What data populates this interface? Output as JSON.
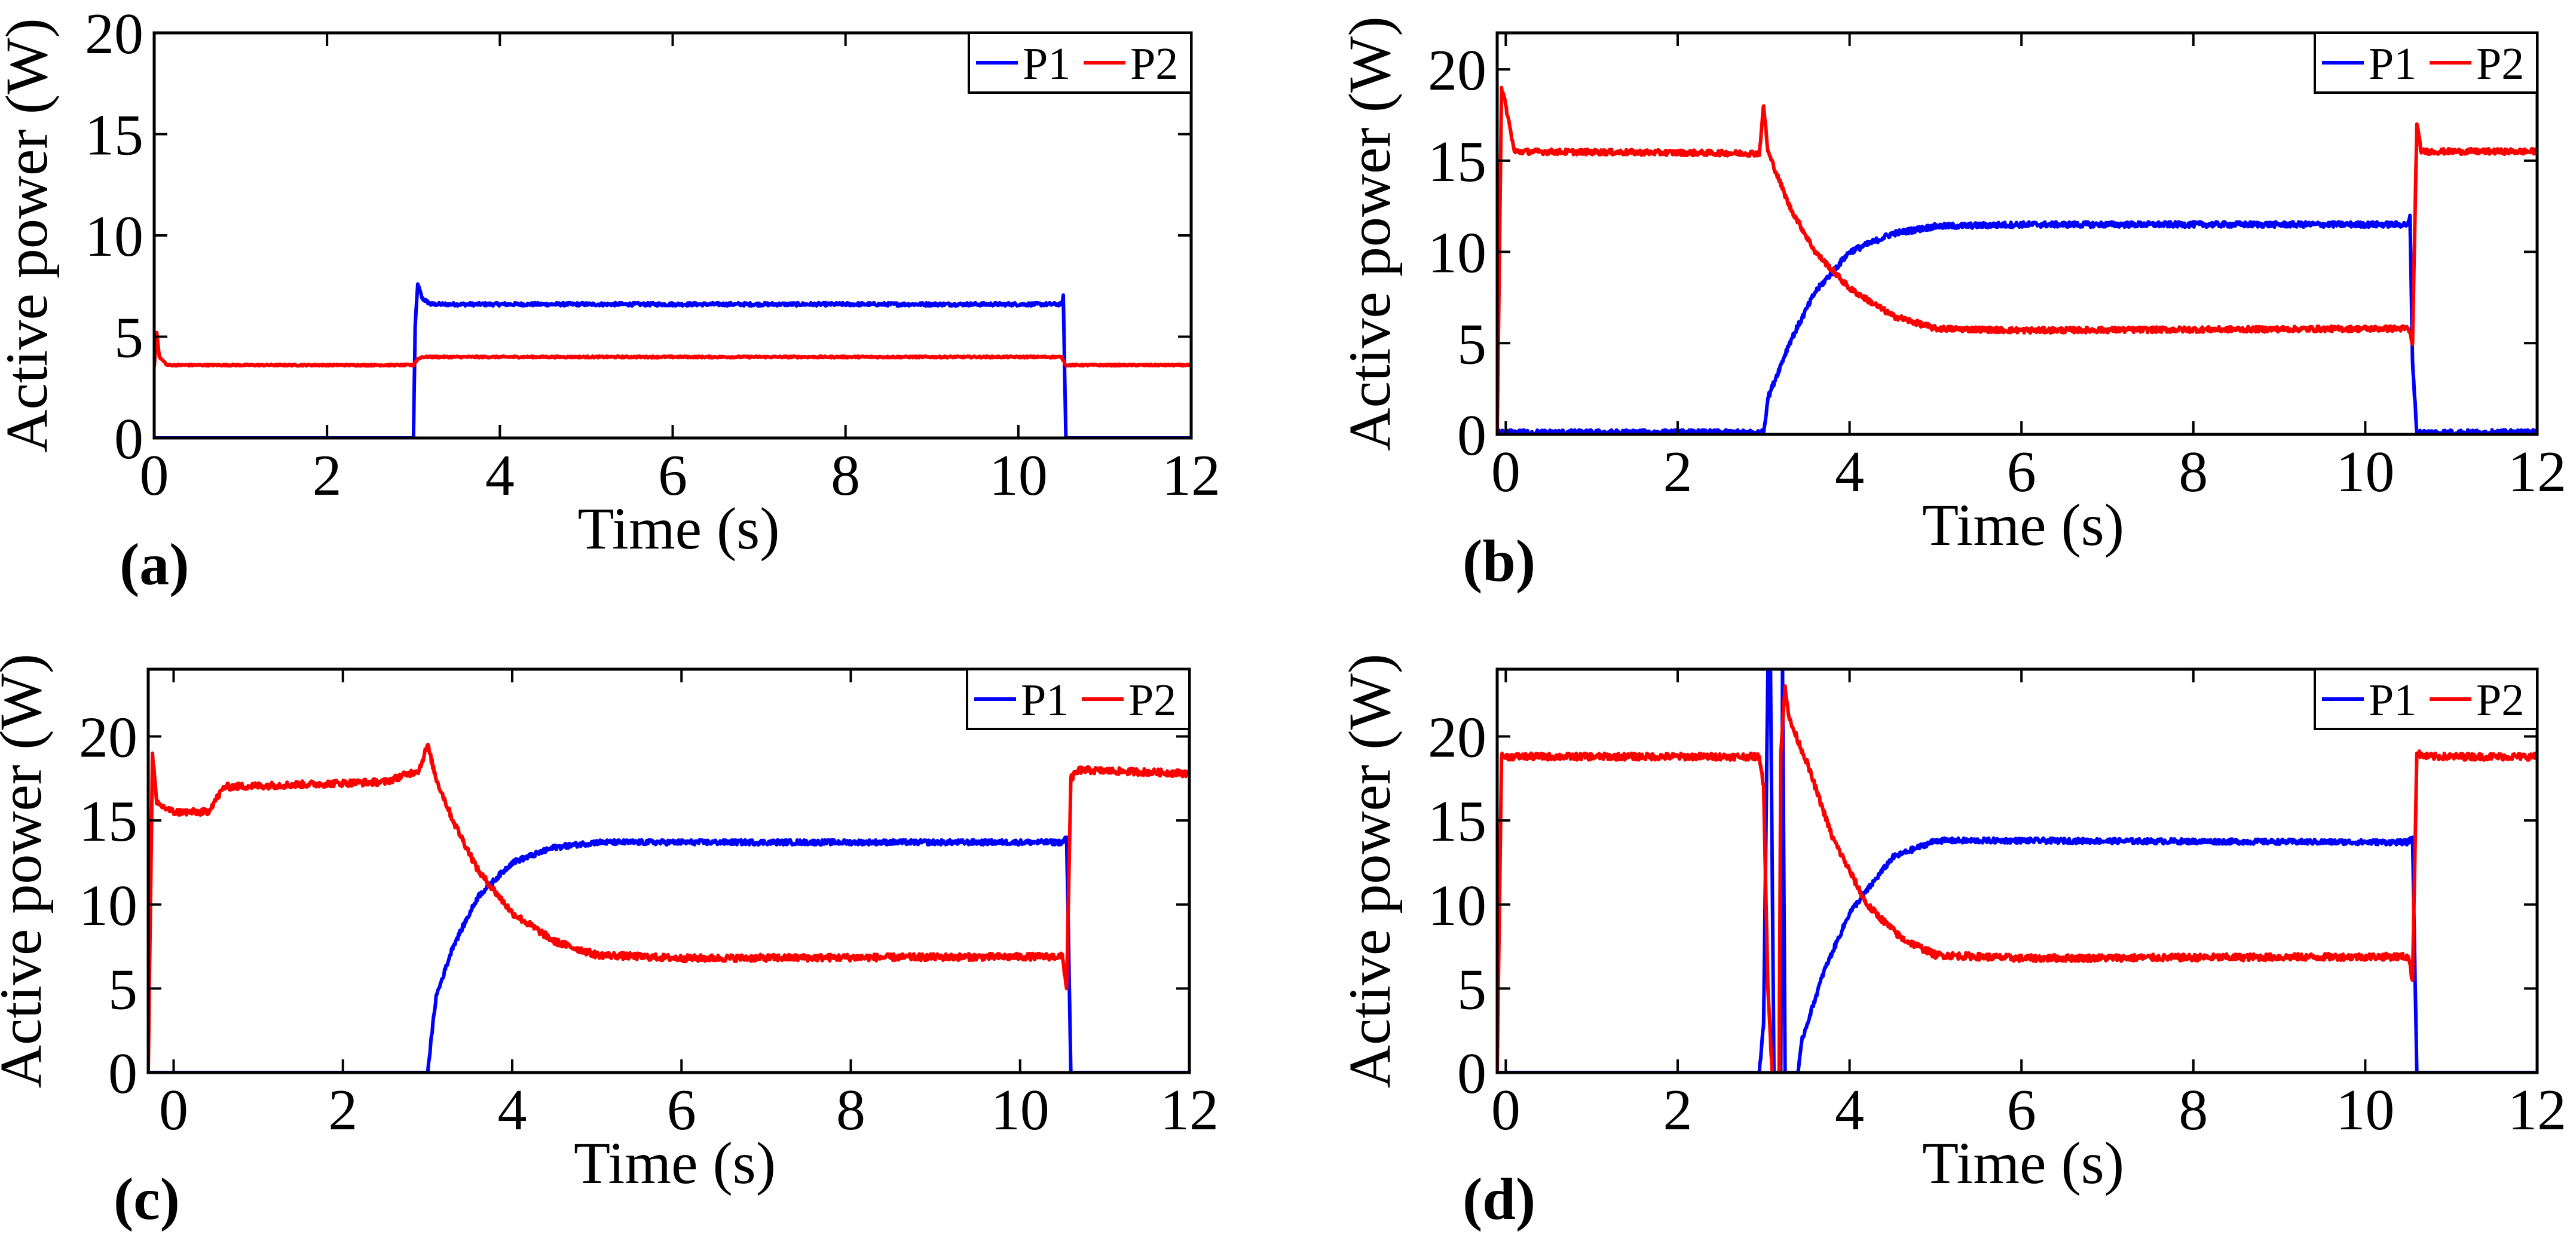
{
  "chart_data": [
    {
      "type": "line",
      "panel_label": "(a)",
      "xlabel": "Time (s)",
      "ylabel": "Active power (W)",
      "xlim": [
        0,
        12
      ],
      "ylim": [
        0,
        20
      ],
      "xticks": [
        0,
        2,
        4,
        6,
        8,
        10,
        12
      ],
      "yticks": [
        0,
        5,
        10,
        15,
        20
      ],
      "legend": {
        "position": "top-right",
        "entries": [
          "P1",
          "P2"
        ]
      },
      "series": [
        {
          "name": "P1",
          "color": "#0000ff",
          "noise": 0.08,
          "points": [
            [
              0,
              0
            ],
            [
              3.0,
              0
            ],
            [
              3.02,
              5.5
            ],
            [
              3.05,
              7.6
            ],
            [
              3.1,
              6.9
            ],
            [
              3.2,
              6.6
            ],
            [
              10.5,
              6.6
            ],
            [
              10.52,
              7.0
            ],
            [
              10.55,
              0
            ],
            [
              12,
              0
            ]
          ]
        },
        {
          "name": "P2",
          "color": "#ff0000",
          "noise": 0.04,
          "points": [
            [
              0,
              3.5
            ],
            [
              0.03,
              5.2
            ],
            [
              0.06,
              4.0
            ],
            [
              0.15,
              3.6
            ],
            [
              3.0,
              3.6
            ],
            [
              3.05,
              3.9
            ],
            [
              3.1,
              4.0
            ],
            [
              10.5,
              4.0
            ],
            [
              10.55,
              3.6
            ],
            [
              12,
              3.6
            ]
          ]
        }
      ]
    },
    {
      "type": "line",
      "panel_label": "(b)",
      "xlabel": "Time (s)",
      "ylabel": "Active power (W)",
      "xlim": [
        -0.1,
        12
      ],
      "ylim": [
        0,
        22
      ],
      "xticks": [
        0,
        2,
        4,
        6,
        8,
        10,
        12
      ],
      "yticks": [
        0,
        5,
        10,
        15,
        20
      ],
      "legend": {
        "position": "top-right",
        "entries": [
          "P1",
          "P2"
        ]
      },
      "series": [
        {
          "name": "P1",
          "color": "#0000ff",
          "noise": 0.15,
          "points": [
            [
              -0.1,
              0.1
            ],
            [
              3.0,
              0.1
            ],
            [
              3.05,
              2.0
            ],
            [
              3.3,
              5.0
            ],
            [
              3.6,
              7.8
            ],
            [
              4.0,
              10.0
            ],
            [
              4.5,
              11.0
            ],
            [
              5.0,
              11.4
            ],
            [
              6.0,
              11.5
            ],
            [
              10.5,
              11.5
            ],
            [
              10.52,
              12.0
            ],
            [
              10.55,
              4.0
            ],
            [
              10.6,
              0.1
            ],
            [
              12,
              0.1
            ]
          ]
        },
        {
          "name": "P2",
          "color": "#ff0000",
          "noise": 0.15,
          "points": [
            [
              -0.1,
              0
            ],
            [
              -0.05,
              19.0
            ],
            [
              0.0,
              18.0
            ],
            [
              0.1,
              15.5
            ],
            [
              2.95,
              15.4
            ],
            [
              3.0,
              18.0
            ],
            [
              3.05,
              15.5
            ],
            [
              3.3,
              12.5
            ],
            [
              3.6,
              10.0
            ],
            [
              4.0,
              8.0
            ],
            [
              4.5,
              6.5
            ],
            [
              5.0,
              5.8
            ],
            [
              6.0,
              5.7
            ],
            [
              10.5,
              5.8
            ],
            [
              10.55,
              5.0
            ],
            [
              10.6,
              17.0
            ],
            [
              10.65,
              15.5
            ],
            [
              12,
              15.5
            ]
          ]
        }
      ]
    },
    {
      "type": "line",
      "panel_label": "(c)",
      "xlabel": "Time (s)",
      "ylabel": "Active power (W)",
      "xlim": [
        -0.3,
        12
      ],
      "ylim": [
        0,
        24
      ],
      "xticks": [
        0,
        2,
        4,
        6,
        8,
        10,
        12
      ],
      "yticks": [
        0,
        5,
        10,
        15,
        20
      ],
      "legend": {
        "position": "top-right",
        "entries": [
          "P1",
          "P2"
        ]
      },
      "series": [
        {
          "name": "P1",
          "color": "#0000ff",
          "noise": 0.15,
          "points": [
            [
              -0.3,
              0
            ],
            [
              3.0,
              0
            ],
            [
              3.1,
              4.5
            ],
            [
              3.3,
              7.5
            ],
            [
              3.6,
              10.5
            ],
            [
              4.0,
              12.5
            ],
            [
              4.5,
              13.4
            ],
            [
              5.0,
              13.7
            ],
            [
              6.0,
              13.7
            ],
            [
              10.5,
              13.7
            ],
            [
              10.55,
              14.0
            ],
            [
              10.6,
              0
            ],
            [
              12,
              0
            ]
          ]
        },
        {
          "name": "P2",
          "color": "#ff0000",
          "noise": 0.2,
          "points": [
            [
              -0.3,
              0
            ],
            [
              -0.25,
              19.0
            ],
            [
              -0.2,
              16.0
            ],
            [
              0.0,
              15.5
            ],
            [
              0.4,
              15.5
            ],
            [
              0.6,
              17.0
            ],
            [
              2.5,
              17.3
            ],
            [
              2.9,
              18.0
            ],
            [
              3.0,
              19.5
            ],
            [
              3.1,
              17.5
            ],
            [
              3.3,
              15.0
            ],
            [
              3.6,
              12.0
            ],
            [
              4.0,
              9.5
            ],
            [
              4.5,
              7.8
            ],
            [
              5.0,
              7.0
            ],
            [
              6.0,
              6.8
            ],
            [
              10.5,
              6.9
            ],
            [
              10.55,
              5.0
            ],
            [
              10.6,
              17.5
            ],
            [
              10.7,
              18.0
            ],
            [
              12,
              17.8
            ]
          ]
        }
      ]
    },
    {
      "type": "line",
      "panel_label": "(d)",
      "xlabel": "Time (s)",
      "ylabel": "Active power (W)",
      "xlim": [
        -0.1,
        12
      ],
      "ylim": [
        0,
        24
      ],
      "xticks": [
        0,
        2,
        4,
        6,
        8,
        10,
        12
      ],
      "yticks": [
        0,
        5,
        10,
        15,
        20
      ],
      "legend": {
        "position": "top-right",
        "entries": [
          "P1",
          "P2"
        ]
      },
      "series": [
        {
          "name": "P1",
          "color": "#0000ff",
          "noise": 0.15,
          "points": [
            [
              -0.1,
              0
            ],
            [
              2.95,
              0
            ],
            [
              3.0,
              3.0
            ],
            [
              3.05,
              24
            ],
            [
              3.08,
              24
            ],
            [
              3.12,
              0
            ],
            [
              3.2,
              0
            ],
            [
              3.22,
              24
            ],
            [
              3.25,
              0
            ],
            [
              3.4,
              0
            ],
            [
              3.45,
              2.0
            ],
            [
              3.7,
              6.0
            ],
            [
              4.0,
              9.5
            ],
            [
              4.5,
              12.8
            ],
            [
              5.0,
              13.8
            ],
            [
              6.0,
              13.8
            ],
            [
              10.5,
              13.7
            ],
            [
              10.55,
              14.0
            ],
            [
              10.6,
              0
            ],
            [
              12,
              0
            ]
          ]
        },
        {
          "name": "P2",
          "color": "#ff0000",
          "noise": 0.2,
          "points": [
            [
              -0.1,
              0
            ],
            [
              -0.05,
              18.8
            ],
            [
              2.95,
              18.8
            ],
            [
              3.0,
              17.0
            ],
            [
              3.05,
              5.0
            ],
            [
              3.1,
              0
            ],
            [
              3.18,
              0
            ],
            [
              3.2,
              19.0
            ],
            [
              3.25,
              23.0
            ],
            [
              3.3,
              21.0
            ],
            [
              3.5,
              18.5
            ],
            [
              3.8,
              14.0
            ],
            [
              4.2,
              10.0
            ],
            [
              4.6,
              8.0
            ],
            [
              5.0,
              7.0
            ],
            [
              6.0,
              6.8
            ],
            [
              10.5,
              6.9
            ],
            [
              10.55,
              5.5
            ],
            [
              10.6,
              19.0
            ],
            [
              10.7,
              18.8
            ],
            [
              12,
              18.8
            ]
          ]
        }
      ]
    }
  ]
}
